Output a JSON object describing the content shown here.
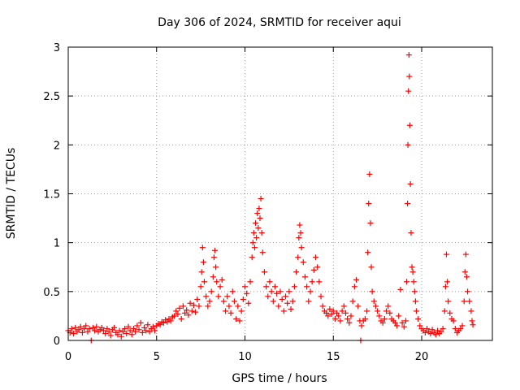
{
  "chart_data": {
    "type": "scatter",
    "title": "Day 306 of 2024, SRMTID for receiver aqui",
    "xlabel": "GPS time / hours",
    "ylabel": "SRMTID / TECUs",
    "xlim": [
      0,
      24
    ],
    "ylim": [
      0,
      3
    ],
    "xticks": [
      0,
      5,
      10,
      15,
      20
    ],
    "xtick_labels": [
      "0",
      "5",
      "10",
      "15",
      "20"
    ],
    "yticks": [
      0,
      0.5,
      1,
      1.5,
      2,
      2.5,
      3
    ],
    "ytick_labels": [
      "0",
      "0.5",
      "1",
      "1.5",
      "2",
      "2.5",
      "3"
    ],
    "grid": true,
    "marker": "+",
    "marker_color": "#ff0000",
    "series": [
      {
        "name": "SRMTID",
        "points": [
          [
            0.0,
            0.1
          ],
          [
            0.1,
            0.08
          ],
          [
            0.2,
            0.12
          ],
          [
            0.3,
            0.07
          ],
          [
            0.4,
            0.13
          ],
          [
            0.5,
            0.09
          ],
          [
            0.6,
            0.11
          ],
          [
            0.7,
            0.14
          ],
          [
            0.8,
            0.08
          ],
          [
            0.9,
            0.12
          ],
          [
            1.0,
            0.15
          ],
          [
            1.1,
            0.09
          ],
          [
            1.2,
            0.12
          ],
          [
            1.3,
            0.0
          ],
          [
            1.4,
            0.13
          ],
          [
            1.5,
            0.1
          ],
          [
            1.6,
            0.14
          ],
          [
            1.7,
            0.09
          ],
          [
            1.8,
            0.11
          ],
          [
            1.9,
            0.13
          ],
          [
            2.0,
            0.1
          ],
          [
            2.1,
            0.07
          ],
          [
            2.2,
            0.12
          ],
          [
            2.3,
            0.09
          ],
          [
            2.4,
            0.05
          ],
          [
            2.5,
            0.11
          ],
          [
            2.6,
            0.13
          ],
          [
            2.7,
            0.08
          ],
          [
            2.8,
            0.06
          ],
          [
            2.9,
            0.1
          ],
          [
            3.0,
            0.04
          ],
          [
            3.1,
            0.09
          ],
          [
            3.2,
            0.12
          ],
          [
            3.3,
            0.07
          ],
          [
            3.4,
            0.14
          ],
          [
            3.5,
            0.1
          ],
          [
            3.6,
            0.06
          ],
          [
            3.7,
            0.12
          ],
          [
            3.8,
            0.09
          ],
          [
            3.9,
            0.15
          ],
          [
            4.0,
            0.11
          ],
          [
            4.1,
            0.18
          ],
          [
            4.2,
            0.08
          ],
          [
            4.3,
            0.13
          ],
          [
            4.4,
            0.1
          ],
          [
            4.5,
            0.16
          ],
          [
            4.6,
            0.09
          ],
          [
            4.7,
            0.12
          ],
          [
            4.8,
            0.14
          ],
          [
            4.9,
            0.1
          ],
          [
            5.0,
            0.15
          ],
          [
            5.1,
            0.17
          ],
          [
            5.2,
            0.16
          ],
          [
            5.3,
            0.19
          ],
          [
            5.4,
            0.18
          ],
          [
            5.5,
            0.21
          ],
          [
            5.6,
            0.19
          ],
          [
            5.7,
            0.22
          ],
          [
            5.8,
            0.2
          ],
          [
            5.9,
            0.24
          ],
          [
            6.0,
            0.25
          ],
          [
            6.1,
            0.3
          ],
          [
            6.2,
            0.27
          ],
          [
            6.3,
            0.33
          ],
          [
            6.4,
            0.22
          ],
          [
            6.5,
            0.35
          ],
          [
            6.6,
            0.28
          ],
          [
            6.7,
            0.31
          ],
          [
            6.8,
            0.26
          ],
          [
            6.9,
            0.38
          ],
          [
            7.0,
            0.3
          ],
          [
            7.1,
            0.36
          ],
          [
            7.2,
            0.29
          ],
          [
            7.3,
            0.42
          ],
          [
            7.4,
            0.35
          ],
          [
            7.5,
            0.55
          ],
          [
            7.55,
            0.7
          ],
          [
            7.6,
            0.95
          ],
          [
            7.65,
            0.8
          ],
          [
            7.7,
            0.6
          ],
          [
            7.8,
            0.45
          ],
          [
            7.9,
            0.35
          ],
          [
            8.0,
            0.4
          ],
          [
            8.1,
            0.5
          ],
          [
            8.2,
            0.65
          ],
          [
            8.25,
            0.85
          ],
          [
            8.3,
            0.92
          ],
          [
            8.35,
            0.75
          ],
          [
            8.4,
            0.6
          ],
          [
            8.5,
            0.45
          ],
          [
            8.6,
            0.55
          ],
          [
            8.7,
            0.62
          ],
          [
            8.8,
            0.4
          ],
          [
            8.9,
            0.3
          ],
          [
            9.0,
            0.45
          ],
          [
            9.1,
            0.35
          ],
          [
            9.2,
            0.28
          ],
          [
            9.3,
            0.5
          ],
          [
            9.4,
            0.4
          ],
          [
            9.5,
            0.22
          ],
          [
            9.6,
            0.35
          ],
          [
            9.7,
            0.2
          ],
          [
            9.8,
            0.3
          ],
          [
            9.9,
            0.42
          ],
          [
            10.0,
            0.55
          ],
          [
            10.1,
            0.48
          ],
          [
            10.2,
            0.38
          ],
          [
            10.3,
            0.6
          ],
          [
            10.4,
            0.85
          ],
          [
            10.45,
            1.0
          ],
          [
            10.5,
            1.1
          ],
          [
            10.55,
            0.95
          ],
          [
            10.6,
            1.2
          ],
          [
            10.65,
            1.05
          ],
          [
            10.7,
            1.3
          ],
          [
            10.75,
            1.15
          ],
          [
            10.8,
            1.35
          ],
          [
            10.85,
            1.25
          ],
          [
            10.9,
            1.45
          ],
          [
            10.95,
            1.1
          ],
          [
            11.0,
            0.9
          ],
          [
            11.1,
            0.7
          ],
          [
            11.2,
            0.55
          ],
          [
            11.3,
            0.45
          ],
          [
            11.4,
            0.6
          ],
          [
            11.5,
            0.5
          ],
          [
            11.6,
            0.4
          ],
          [
            11.7,
            0.55
          ],
          [
            11.8,
            0.48
          ],
          [
            11.9,
            0.35
          ],
          [
            12.0,
            0.5
          ],
          [
            12.1,
            0.42
          ],
          [
            12.2,
            0.3
          ],
          [
            12.3,
            0.45
          ],
          [
            12.4,
            0.38
          ],
          [
            12.5,
            0.5
          ],
          [
            12.6,
            0.32
          ],
          [
            12.7,
            0.4
          ],
          [
            12.8,
            0.55
          ],
          [
            12.9,
            0.7
          ],
          [
            13.0,
            0.85
          ],
          [
            13.05,
            1.05
          ],
          [
            13.1,
            1.18
          ],
          [
            13.15,
            1.1
          ],
          [
            13.2,
            0.95
          ],
          [
            13.3,
            0.8
          ],
          [
            13.4,
            0.65
          ],
          [
            13.5,
            0.55
          ],
          [
            13.6,
            0.4
          ],
          [
            13.7,
            0.5
          ],
          [
            13.8,
            0.6
          ],
          [
            13.9,
            0.72
          ],
          [
            14.0,
            0.85
          ],
          [
            14.1,
            0.75
          ],
          [
            14.2,
            0.6
          ],
          [
            14.3,
            0.45
          ],
          [
            14.4,
            0.35
          ],
          [
            14.5,
            0.3
          ],
          [
            14.6,
            0.28
          ],
          [
            14.7,
            0.25
          ],
          [
            14.8,
            0.32
          ],
          [
            14.9,
            0.27
          ],
          [
            15.0,
            0.3
          ],
          [
            15.1,
            0.22
          ],
          [
            15.2,
            0.28
          ],
          [
            15.3,
            0.25
          ],
          [
            15.4,
            0.2
          ],
          [
            15.5,
            0.3
          ],
          [
            15.6,
            0.35
          ],
          [
            15.7,
            0.28
          ],
          [
            15.8,
            0.22
          ],
          [
            15.9,
            0.18
          ],
          [
            16.0,
            0.25
          ],
          [
            16.1,
            0.4
          ],
          [
            16.2,
            0.55
          ],
          [
            16.3,
            0.62
          ],
          [
            16.4,
            0.35
          ],
          [
            16.5,
            0.2
          ],
          [
            16.55,
            0.0
          ],
          [
            16.6,
            0.15
          ],
          [
            16.7,
            0.2
          ],
          [
            16.8,
            0.22
          ],
          [
            16.9,
            0.3
          ],
          [
            16.95,
            0.9
          ],
          [
            17.0,
            1.4
          ],
          [
            17.05,
            1.7
          ],
          [
            17.1,
            1.2
          ],
          [
            17.15,
            0.75
          ],
          [
            17.2,
            0.5
          ],
          [
            17.3,
            0.4
          ],
          [
            17.4,
            0.35
          ],
          [
            17.5,
            0.3
          ],
          [
            17.6,
            0.25
          ],
          [
            17.7,
            0.2
          ],
          [
            17.8,
            0.18
          ],
          [
            17.9,
            0.22
          ],
          [
            18.0,
            0.3
          ],
          [
            18.1,
            0.35
          ],
          [
            18.2,
            0.28
          ],
          [
            18.3,
            0.22
          ],
          [
            18.4,
            0.2
          ],
          [
            18.5,
            0.18
          ],
          [
            18.6,
            0.15
          ],
          [
            18.7,
            0.25
          ],
          [
            18.8,
            0.52
          ],
          [
            18.9,
            0.18
          ],
          [
            19.0,
            0.14
          ],
          [
            19.1,
            0.2
          ],
          [
            19.15,
            0.6
          ],
          [
            19.2,
            1.4
          ],
          [
            19.22,
            2.0
          ],
          [
            19.25,
            2.55
          ],
          [
            19.28,
            2.92
          ],
          [
            19.3,
            2.7
          ],
          [
            19.33,
            2.2
          ],
          [
            19.36,
            1.6
          ],
          [
            19.4,
            1.1
          ],
          [
            19.45,
            0.75
          ],
          [
            19.5,
            0.7
          ],
          [
            19.55,
            0.6
          ],
          [
            19.6,
            0.5
          ],
          [
            19.65,
            0.4
          ],
          [
            19.7,
            0.3
          ],
          [
            19.8,
            0.22
          ],
          [
            19.9,
            0.15
          ],
          [
            20.0,
            0.12
          ],
          [
            20.1,
            0.1
          ],
          [
            20.2,
            0.08
          ],
          [
            20.3,
            0.12
          ],
          [
            20.4,
            0.09
          ],
          [
            20.5,
            0.07
          ],
          [
            20.6,
            0.11
          ],
          [
            20.7,
            0.08
          ],
          [
            20.8,
            0.06
          ],
          [
            20.9,
            0.1
          ],
          [
            21.0,
            0.07
          ],
          [
            21.1,
            0.09
          ],
          [
            21.2,
            0.12
          ],
          [
            21.3,
            0.3
          ],
          [
            21.35,
            0.55
          ],
          [
            21.4,
            0.88
          ],
          [
            21.45,
            0.6
          ],
          [
            21.5,
            0.4
          ],
          [
            21.6,
            0.28
          ],
          [
            21.7,
            0.22
          ],
          [
            21.8,
            0.2
          ],
          [
            21.9,
            0.12
          ],
          [
            22.0,
            0.08
          ],
          [
            22.1,
            0.1
          ],
          [
            22.2,
            0.12
          ],
          [
            22.3,
            0.15
          ],
          [
            22.4,
            0.4
          ],
          [
            22.45,
            0.7
          ],
          [
            22.5,
            0.88
          ],
          [
            22.55,
            0.65
          ],
          [
            22.6,
            0.5
          ],
          [
            22.7,
            0.4
          ],
          [
            22.8,
            0.3
          ],
          [
            22.85,
            0.2
          ],
          [
            22.9,
            0.16
          ]
        ]
      }
    ]
  }
}
